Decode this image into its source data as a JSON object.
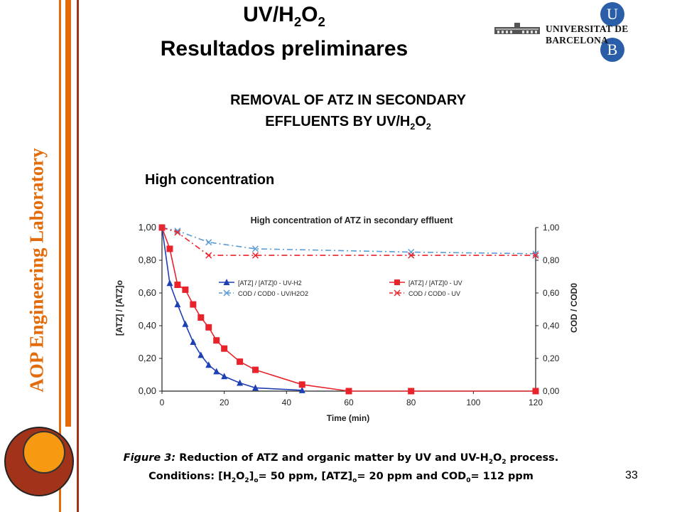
{
  "slide": {
    "side_label": "AOP Engineering Laboratory",
    "title_line1_main": "UV/H",
    "title_line1_sub1": "2",
    "title_line1_mid": "O",
    "title_line1_sub2": "2",
    "title_line2": "Resultados preliminares",
    "subtitle_line1": "REMOVAL OF ATZ IN SECONDARY",
    "subtitle_line2_main": "EFFLUENTS BY UV/H",
    "subtitle_line2_sub1": "2",
    "subtitle_line2_mid": "O",
    "subtitle_line2_sub2": "2",
    "section_label": "High concentration",
    "page_number": "33",
    "logo": {
      "letter_top": "U",
      "letter_bottom": "B",
      "text": "UNIVERSITAT DE BARCELONA",
      "color": "#2a5ea8"
    },
    "accent_color": "#e36c0a",
    "dark_accent": "#a0331a"
  },
  "caption": {
    "figure_label": "Figure 3:",
    "line1_a": " Reduction of ATZ and organic matter by UV and UV-H",
    "line1_s1": "2",
    "line1_b": "O",
    "line1_s2": "2",
    "line1_c": " process.",
    "line2_a": "Conditions:  [H",
    "line2_s1": "2",
    "line2_b": "O",
    "line2_s2": "2",
    "line2_c": "]",
    "line2_s3": "o",
    "line2_d": "= 50 ppm, [ATZ]",
    "line2_s4": "o",
    "line2_e": "= 20 ppm and COD",
    "line2_s5": "0",
    "line2_f": "= 112 ppm"
  },
  "chart_data": {
    "type": "line",
    "title": "High concentration of ATZ in secondary effluent",
    "xlabel": "Time (min)",
    "ylabel": "[ATZ] / [ATZ]o",
    "ylabel_right": "COD / COD0",
    "xlim": [
      0,
      120
    ],
    "ylim": [
      0,
      1.0
    ],
    "ylim_right": [
      0,
      1.0
    ],
    "x_ticks": [
      "0",
      "20",
      "40",
      "60",
      "80",
      "100",
      "120"
    ],
    "y_ticks": [
      "0,00",
      "0,20",
      "0,40",
      "0,60",
      "0,80",
      "1,00"
    ],
    "y_ticks_right": [
      "0,00",
      "0,20",
      "0,40",
      "0,60",
      "0,80",
      "1,00"
    ],
    "grid": false,
    "legend_position": "center-right",
    "series": [
      {
        "name": "[ATZ] / [ATZ]0 - UV-H2",
        "color": "#1f3fb5",
        "marker": "triangle",
        "dash": "solid",
        "x": [
          0,
          2.5,
          5,
          7.5,
          10,
          12.5,
          15,
          17.5,
          20,
          25,
          30,
          45
        ],
        "y": [
          1.0,
          0.66,
          0.53,
          0.41,
          0.3,
          0.22,
          0.16,
          0.12,
          0.09,
          0.05,
          0.02,
          0.005
        ]
      },
      {
        "name": "[ATZ] / [ATZ]0 - UV",
        "color": "#e8232b",
        "marker": "square",
        "dash": "solid",
        "x": [
          0,
          2.5,
          5,
          7.5,
          10,
          12.5,
          15,
          17.5,
          20,
          25,
          30,
          45,
          60,
          80,
          120
        ],
        "y": [
          1.0,
          0.87,
          0.65,
          0.62,
          0.53,
          0.45,
          0.39,
          0.31,
          0.26,
          0.18,
          0.13,
          0.04,
          0.0,
          0.0,
          0.0
        ]
      },
      {
        "name": "COD / COD0 - UV/H2O2",
        "color": "#5b9bd5",
        "marker": "x",
        "dash": "8,4,2,4",
        "x": [
          0,
          5,
          15,
          30,
          80,
          120
        ],
        "y": [
          1.0,
          0.98,
          0.91,
          0.87,
          0.85,
          0.84
        ]
      },
      {
        "name": "COD / COD0 - UV",
        "color": "#e8232b",
        "marker": "x",
        "dash": "8,4,2,4",
        "x": [
          0,
          5,
          15,
          30,
          80,
          120
        ],
        "y": [
          1.0,
          0.97,
          0.83,
          0.83,
          0.83,
          0.83
        ]
      }
    ]
  }
}
